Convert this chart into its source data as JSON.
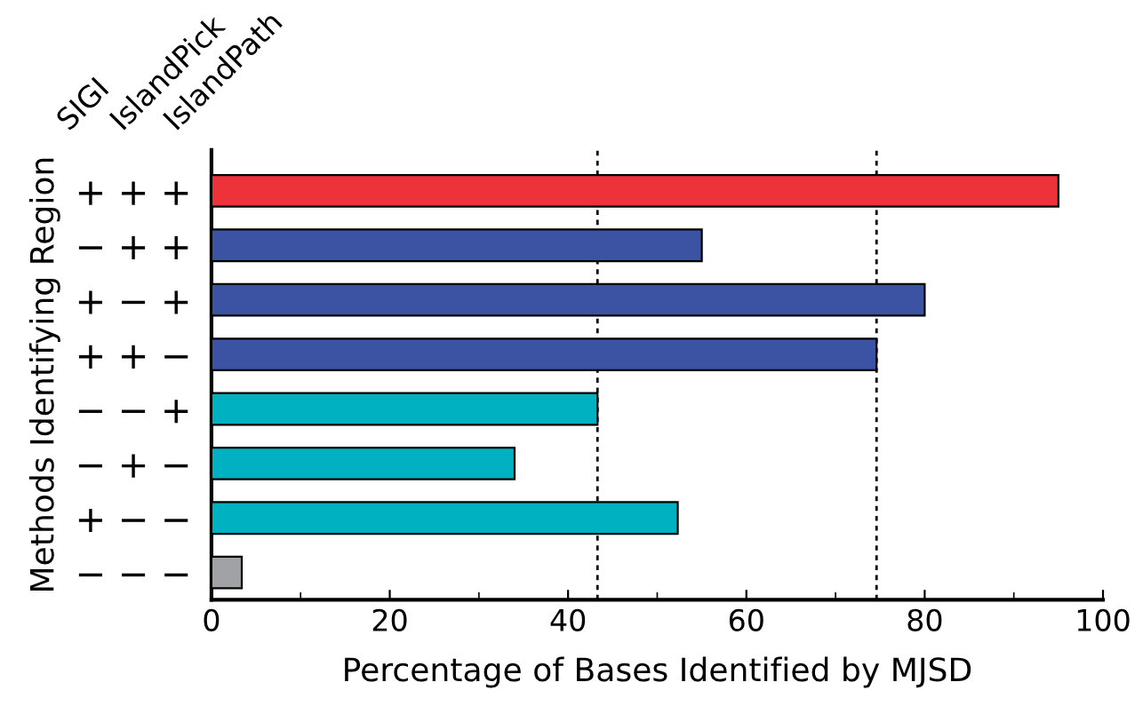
{
  "chart_data": {
    "type": "bar",
    "orientation": "horizontal",
    "categories": [
      "+ + +",
      "− + +",
      "+ − +",
      "+ + −",
      "− − +",
      "− + −",
      "+ − −",
      "− − −"
    ],
    "values": [
      95,
      55,
      80,
      74.6,
      43.3,
      34,
      52.3,
      3.4
    ],
    "colors": [
      "#ee3239",
      "#3c52a3",
      "#3c52a3",
      "#3c52a3",
      "#00b2c1",
      "#00b2c1",
      "#00b2c1",
      "#a0a2a5"
    ],
    "xlabel": "Percentage of Bases Identified by MJSD",
    "ylabel": "Methods Identifying Region",
    "annotations": [
      "SIGI",
      "IslandPick",
      "IslandPath"
    ],
    "xlim": [
      0,
      100
    ],
    "xticks": [
      0,
      20,
      40,
      60,
      80,
      100
    ],
    "grid": false,
    "legend": false,
    "ref_lines": [
      {
        "axis": "x",
        "value": 43.3,
        "color": "#000000",
        "line_style": "dotted"
      },
      {
        "axis": "x",
        "value": 74.6,
        "color": "#000000",
        "line_style": "dotted"
      }
    ]
  }
}
